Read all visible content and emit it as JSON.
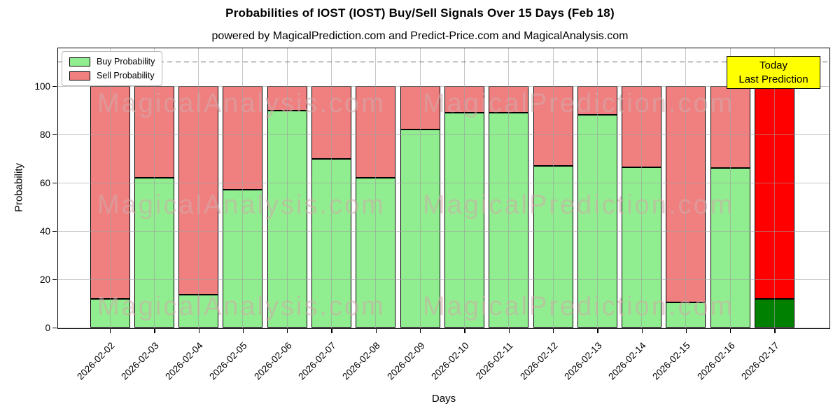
{
  "header": {
    "title": "Probabilities of IOST (IOST) Buy/Sell Signals Over 15 Days (Feb 18)",
    "subtitle": "powered by MagicalPrediction.com and Predict-Price.com and MagicalAnalysis.com"
  },
  "legend": {
    "items": [
      {
        "label": "Buy Probability",
        "color": "#90EE90"
      },
      {
        "label": "Sell Probability",
        "color": "#F08080"
      }
    ]
  },
  "annotation_box": {
    "line1": "Today",
    "line2": "Last Prediction",
    "bg_color": "#FFFF00"
  },
  "axes": {
    "ylabel": "Probability",
    "xlabel": "Days"
  },
  "watermark": {
    "left_text": "MagicalAnalysis.com",
    "right_text": "MagicalPrediction.com",
    "row_count": 3
  },
  "chart_data": {
    "type": "bar",
    "stacked": true,
    "grid": true,
    "legend_position": "upper left",
    "title": "Probabilities of IOST (IOST) Buy/Sell Signals Over 15 Days (Feb 18)",
    "xlabel": "Days",
    "ylabel": "Probability",
    "ylim": [
      0,
      116
    ],
    "yticks": [
      0,
      20,
      40,
      60,
      80,
      100
    ],
    "dashed_line_y": 110,
    "categories": [
      "2026-02-02",
      "2026-02-03",
      "2026-02-04",
      "2026-02-05",
      "2026-02-06",
      "2026-02-07",
      "2026-02-08",
      "2026-02-09",
      "2026-02-10",
      "2026-02-11",
      "2026-02-12",
      "2026-02-13",
      "2026-02-14",
      "2026-02-15",
      "2026-02-16",
      "2026-02-17"
    ],
    "series": [
      {
        "name": "Buy Probability",
        "color": "#90EE90",
        "last_bar_color": "#008000",
        "values": [
          12,
          62,
          13.5,
          57,
          90,
          70,
          62,
          82,
          89,
          89,
          67,
          88,
          66.5,
          10.5,
          66,
          12
        ]
      },
      {
        "name": "Sell Probability",
        "color": "#F08080",
        "last_bar_color": "#FF0000",
        "values": [
          88,
          38,
          86.5,
          43,
          10,
          30,
          38,
          18,
          11,
          11,
          33,
          12,
          33.5,
          89.5,
          34,
          88
        ]
      }
    ]
  }
}
